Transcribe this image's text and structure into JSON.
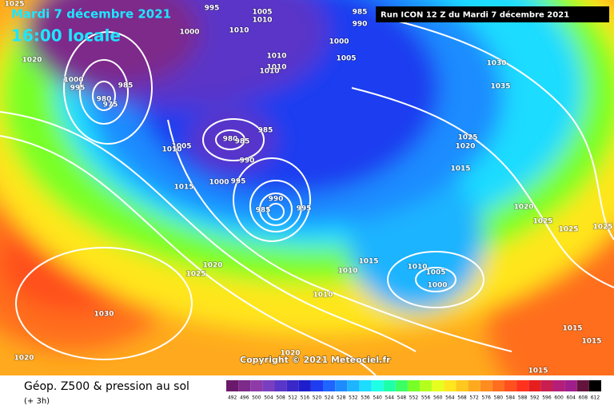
{
  "header": {
    "date": "Mardi 7 décembre 2021",
    "time": "16:00 locale",
    "run": "Run ICON 12 Z du Mardi 7 décembre 2021"
  },
  "copyright": "Copyright © 2021 Meteociel.fr",
  "footer": {
    "title": "Géop. Z500 & pression au sol",
    "step": "(+ 3h)"
  },
  "isobar_labels": [
    1025,
    1020,
    1000,
    995,
    985,
    980,
    975,
    995,
    1000,
    1005,
    1010,
    1010,
    1010,
    1010,
    1010,
    985,
    990,
    1000,
    1005,
    1030,
    1035,
    980,
    985,
    985,
    990,
    1005,
    1010,
    1015,
    1000,
    995,
    990,
    985,
    995,
    1025,
    1020,
    1015,
    1020,
    1025,
    1025,
    1025,
    1020,
    1025,
    1015,
    1010,
    1010,
    1005,
    1000,
    1010,
    1030,
    1020,
    1015,
    1015,
    1015,
    1020
  ],
  "scale": {
    "values": [
      492,
      496,
      500,
      504,
      508,
      512,
      516,
      520,
      524,
      528,
      532,
      536,
      540,
      544,
      548,
      552,
      556,
      560,
      564,
      568,
      572,
      576,
      580,
      584,
      588,
      592,
      596,
      600,
      604,
      608,
      612
    ],
    "colors": [
      "#6b1a6b",
      "#7d2a8a",
      "#8e3aa8",
      "#7a3fc0",
      "#5a36c8",
      "#3a28c8",
      "#1e1ecc",
      "#1e3cf0",
      "#1e64ff",
      "#1e8cff",
      "#1eb4ff",
      "#1edcff",
      "#1effe6",
      "#1effaa",
      "#3cff64",
      "#78ff28",
      "#b4ff1e",
      "#e6ff1e",
      "#ffe61e",
      "#ffc81e",
      "#ffaa1e",
      "#ff8c1e",
      "#ff6e1e",
      "#ff501e",
      "#ff321e",
      "#e61e1e",
      "#c81e50",
      "#b41e78",
      "#a01e8c",
      "#64143c",
      "#000000"
    ]
  }
}
